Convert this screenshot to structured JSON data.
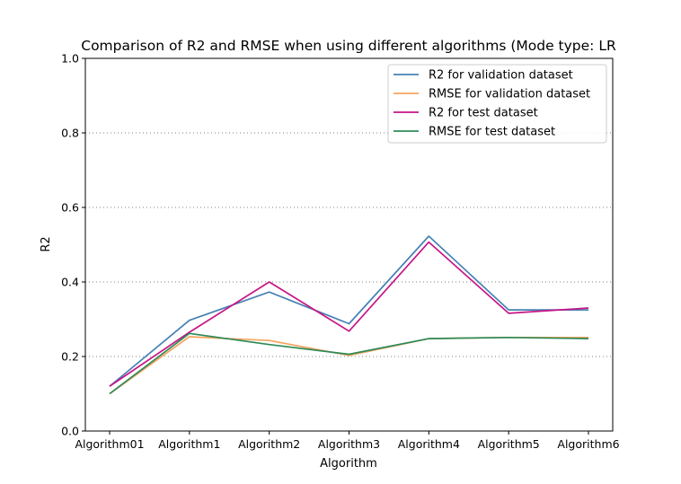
{
  "chart_data": {
    "type": "line",
    "title": "Comparison of R2 and RMSE when using different algorithms (Mode type: LR",
    "xlabel": "Algorithm",
    "ylabel": "R2",
    "ylim": [
      0.0,
      1.0
    ],
    "yticks": [
      "0.0",
      "0.2",
      "0.4",
      "0.6",
      "0.8",
      "1.0"
    ],
    "grid": "horizontal dotted",
    "legend_position": "top-right",
    "categories": [
      "Algorithm01",
      "Algorithm1",
      "Algorithm2",
      "Algorithm3",
      "Algorithm4",
      "Algorithm5",
      "Algorithm6"
    ],
    "series": [
      {
        "name": "R2 for validation dataset",
        "color": "#4682b4",
        "values": [
          0.12,
          0.297,
          0.373,
          0.288,
          0.523,
          0.325,
          0.325
        ]
      },
      {
        "name": "RMSE for validation dataset",
        "color": "#f4a460",
        "values": [
          0.1,
          0.253,
          0.243,
          0.203,
          0.248,
          0.251,
          0.251
        ]
      },
      {
        "name": "R2 for test dataset",
        "color": "#c71585",
        "values": [
          0.12,
          0.265,
          0.4,
          0.268,
          0.507,
          0.316,
          0.33
        ]
      },
      {
        "name": "RMSE for test dataset",
        "color": "#2e8b57",
        "values": [
          0.1,
          0.262,
          0.232,
          0.206,
          0.248,
          0.251,
          0.248
        ]
      }
    ]
  }
}
